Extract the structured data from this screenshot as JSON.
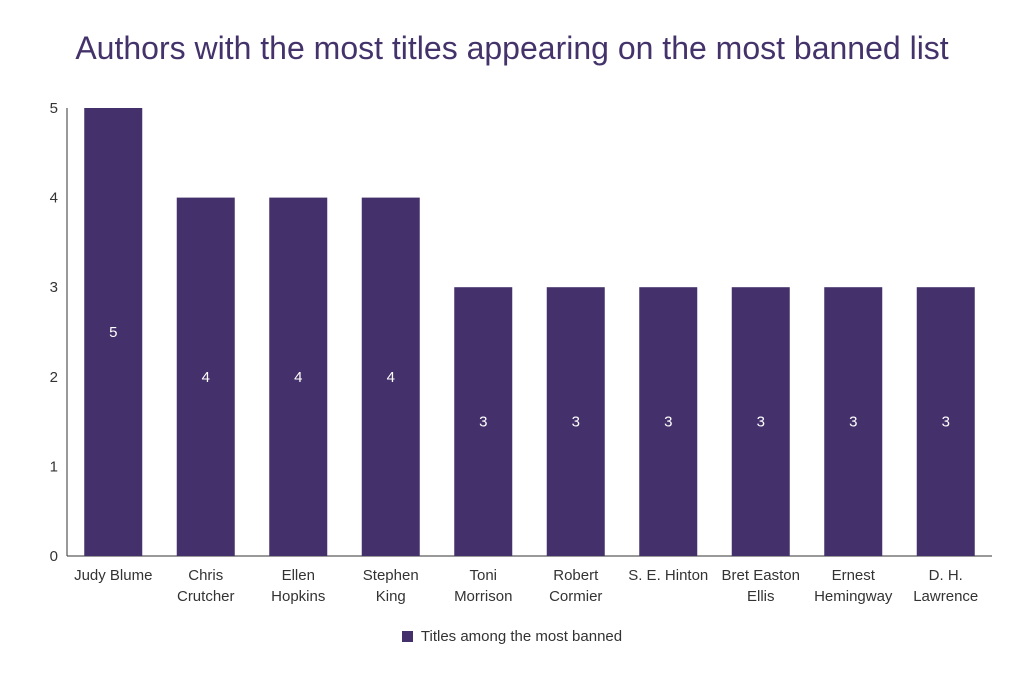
{
  "colors": {
    "bar": "#44306a",
    "title": "#44336a"
  },
  "chart_data": {
    "type": "bar",
    "title": "Authors with the most titles appearing on the most banned list",
    "categories": [
      [
        "Judy Blume"
      ],
      [
        "Chris",
        "Crutcher"
      ],
      [
        "Ellen",
        "Hopkins"
      ],
      [
        "Stephen",
        "King"
      ],
      [
        "Toni",
        "Morrison"
      ],
      [
        "Robert",
        "Cormier"
      ],
      [
        "S. E. Hinton"
      ],
      [
        "Bret Easton",
        "Ellis"
      ],
      [
        "Ernest",
        "Hemingway"
      ],
      [
        "D. H.",
        "Lawrence"
      ]
    ],
    "series": [
      {
        "name": "Titles among the most banned",
        "values": [
          5,
          4,
          4,
          4,
          3,
          3,
          3,
          3,
          3,
          3
        ]
      }
    ],
    "ylim": [
      0,
      5
    ],
    "yticks": [
      0,
      1,
      2,
      3,
      4,
      5
    ],
    "data_labels": true,
    "grid": false,
    "legend_position": "bottom"
  }
}
